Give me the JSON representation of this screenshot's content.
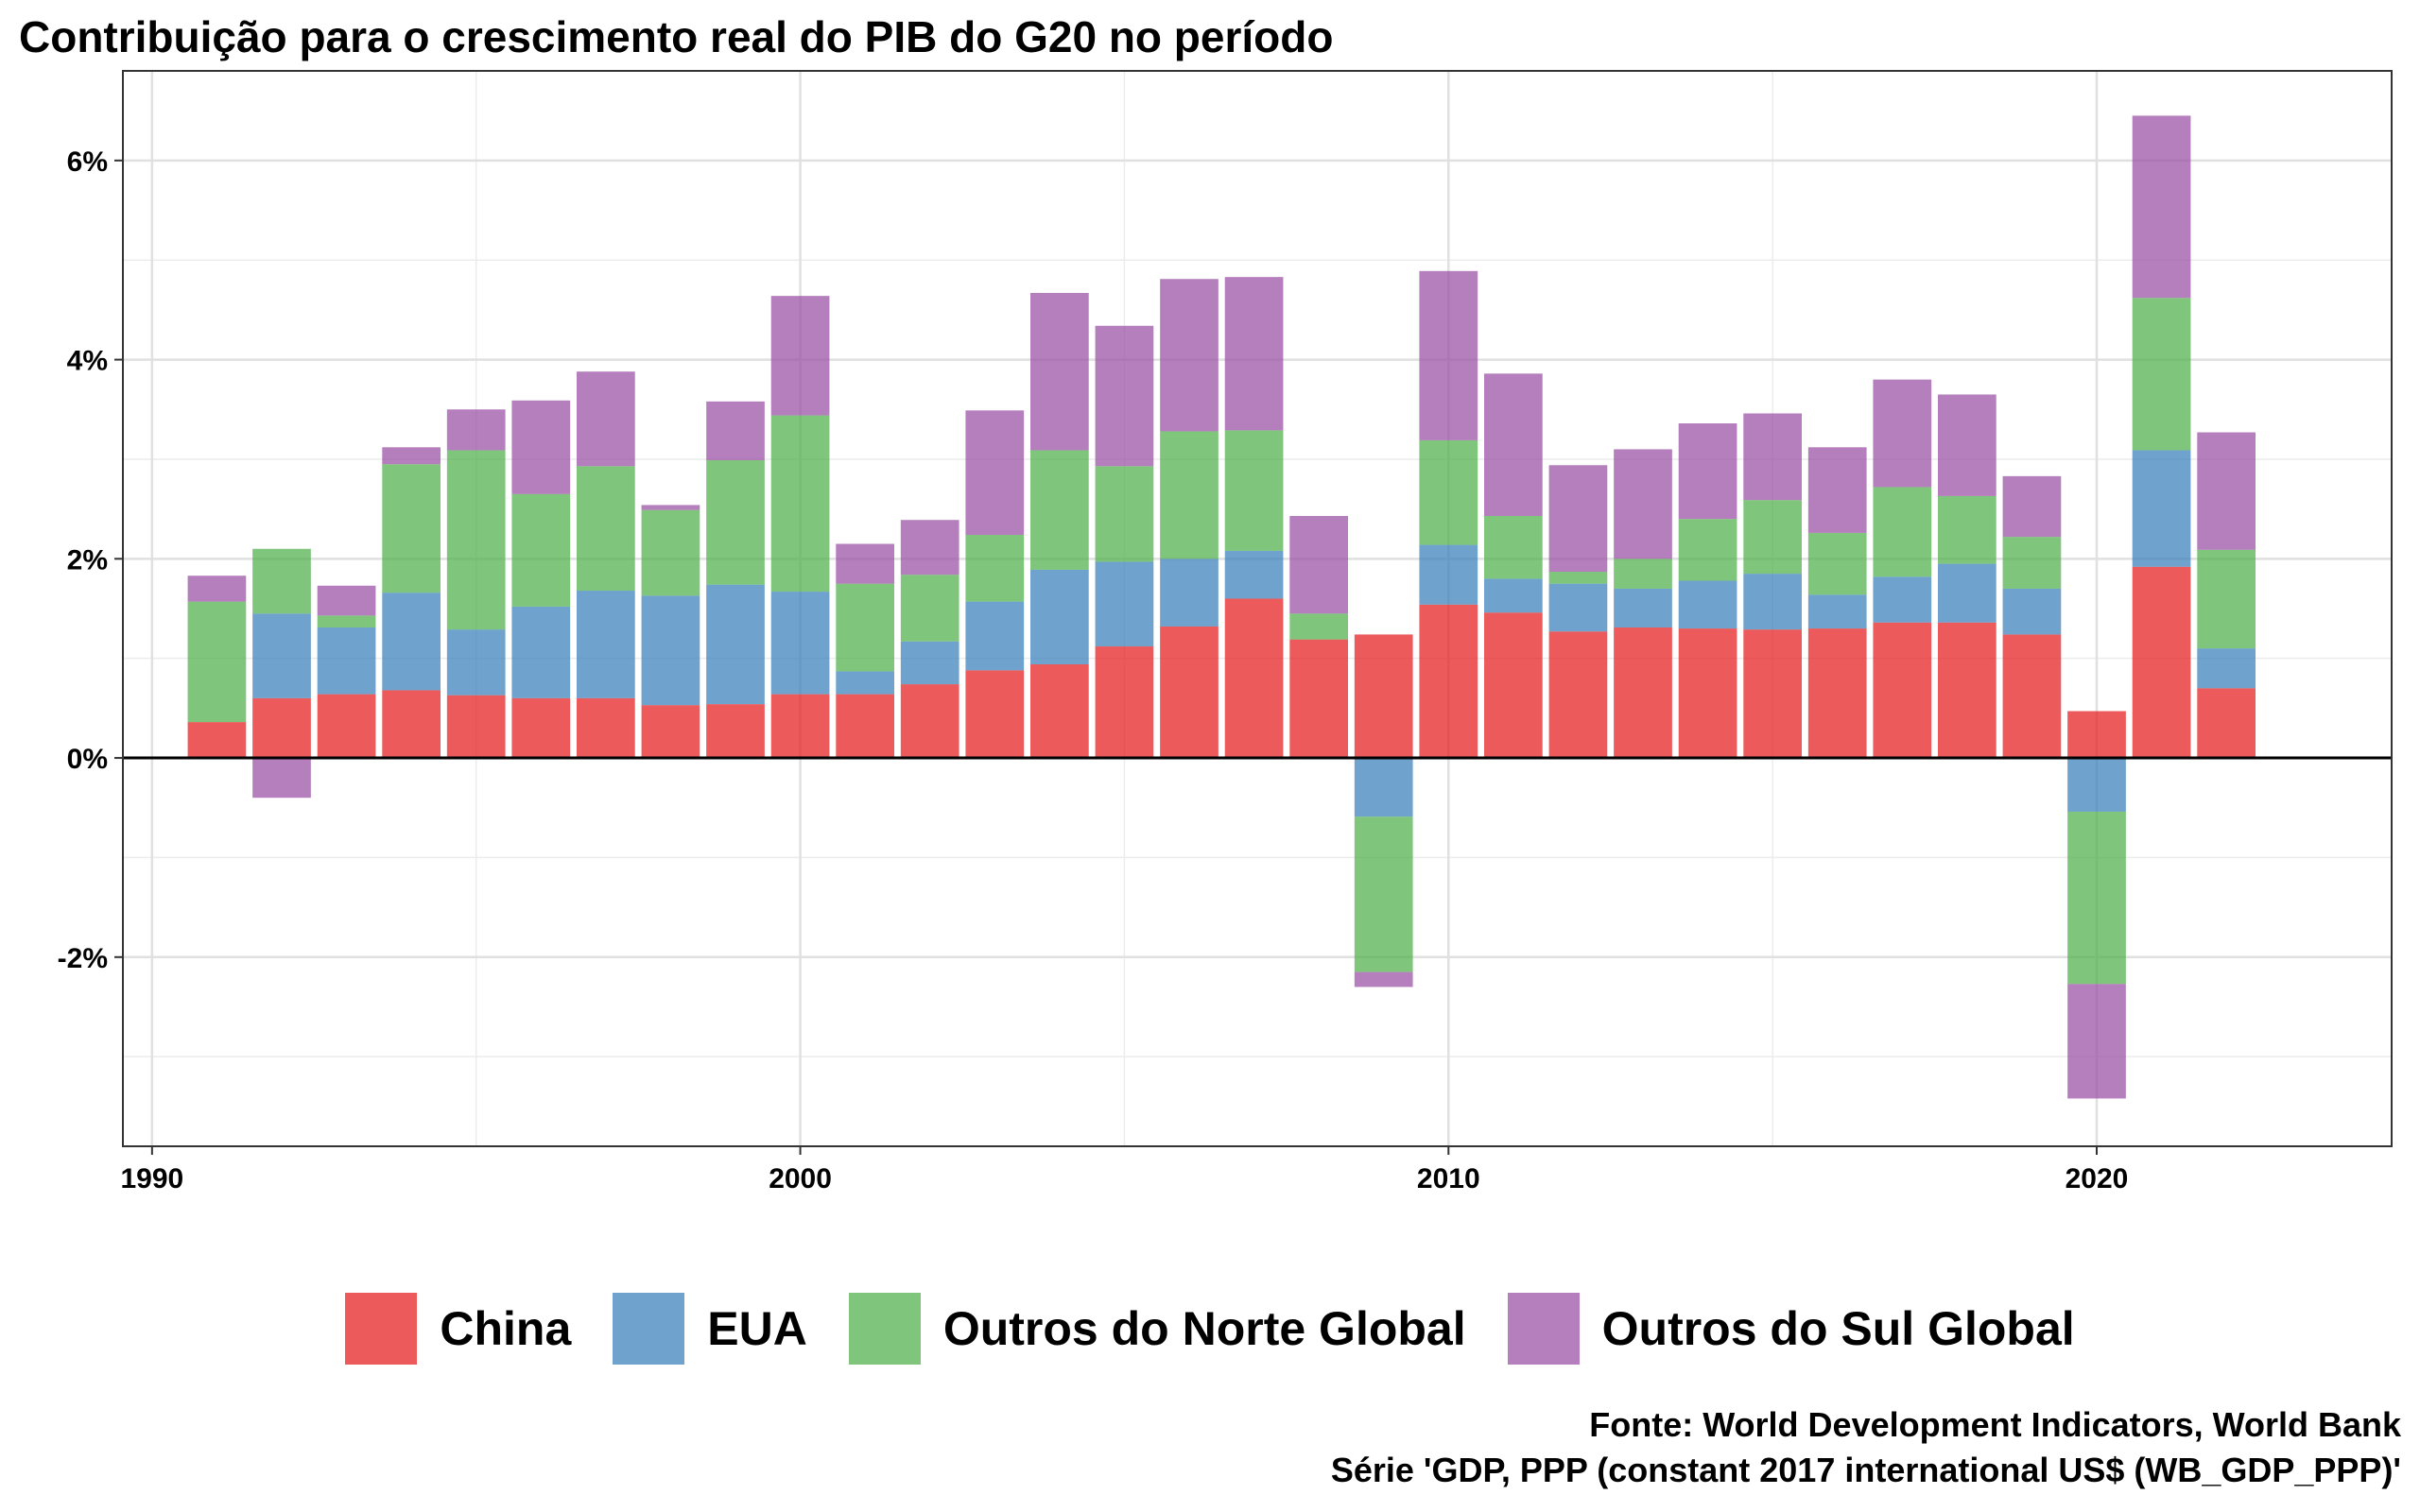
{
  "chart_data": {
    "type": "bar",
    "stacked": true,
    "title": "Contribuição para o crescimento real do PIB do G20 no período",
    "xlabel": "",
    "ylabel": "",
    "x": [
      1991,
      1992,
      1993,
      1994,
      1995,
      1996,
      1997,
      1998,
      1999,
      2000,
      2001,
      2002,
      2003,
      2004,
      2005,
      2006,
      2007,
      2008,
      2009,
      2010,
      2011,
      2012,
      2013,
      2014,
      2015,
      2016,
      2017,
      2018,
      2019,
      2020,
      2021,
      2022
    ],
    "xticks": [
      1990,
      2000,
      2010,
      2020
    ],
    "xtick_labels": [
      "1990",
      "2000",
      "2010",
      "2020"
    ],
    "xlim": [
      1989.55,
      2024.55
    ],
    "ylim": [
      -3.9,
      6.9
    ],
    "yticks": [
      -2,
      0,
      2,
      4,
      6
    ],
    "ytick_labels": [
      "-2%",
      "0%",
      "2%",
      "4%",
      "6%"
    ],
    "grid": true,
    "legend_position": "bottom",
    "series": [
      {
        "name": "China",
        "color": "#E41A1C",
        "values": [
          0.36,
          0.6,
          0.64,
          0.68,
          0.63,
          0.6,
          0.6,
          0.53,
          0.54,
          0.64,
          0.64,
          0.74,
          0.88,
          0.94,
          1.12,
          1.32,
          1.6,
          1.19,
          1.24,
          1.54,
          1.46,
          1.27,
          1.31,
          1.3,
          1.29,
          1.3,
          1.36,
          1.36,
          1.24,
          0.47,
          1.92,
          0.7
        ]
      },
      {
        "name": "EUA",
        "color": "#377EB8",
        "values": [
          0,
          0.85,
          0.67,
          0.98,
          0.66,
          0.92,
          1.08,
          1.1,
          1.2,
          1.03,
          0.23,
          0.43,
          0.69,
          0.95,
          0.85,
          0.68,
          0.48,
          -0.01,
          -0.59,
          0.6,
          0.34,
          0.48,
          0.39,
          0.48,
          0.56,
          0.34,
          0.46,
          0.59,
          0.46,
          -0.54,
          1.17,
          0.4
        ]
      },
      {
        "name": "Outros do Norte Global",
        "color": "#4DAF4A",
        "values": [
          1.21,
          0.65,
          0.12,
          1.29,
          1.8,
          1.13,
          1.25,
          0.86,
          1.25,
          1.77,
          0.88,
          0.67,
          0.67,
          1.2,
          0.96,
          1.28,
          1.21,
          0.26,
          -1.56,
          1.05,
          0.63,
          0.12,
          0.3,
          0.62,
          0.74,
          0.62,
          0.9,
          0.68,
          0.52,
          -1.73,
          1.53,
          0.99
        ]
      },
      {
        "name": "Outros do Sul Global",
        "color": "#984EA3",
        "values": [
          0.26,
          -0.4,
          0.3,
          0.17,
          0.41,
          0.94,
          0.95,
          0.05,
          0.59,
          1.2,
          0.4,
          0.55,
          1.25,
          1.58,
          1.41,
          1.53,
          1.54,
          0.98,
          -0.15,
          1.7,
          1.43,
          1.07,
          1.1,
          0.96,
          0.87,
          0.86,
          1.08,
          1.02,
          0.61,
          -1.15,
          1.83,
          1.18
        ]
      }
    ],
    "caption_lines": [
      "Fonte: World Development Indicators, World Bank",
      "Série 'GDP, PPP (constant 2017 international US$ (WB_GDP_PPP)'"
    ]
  }
}
